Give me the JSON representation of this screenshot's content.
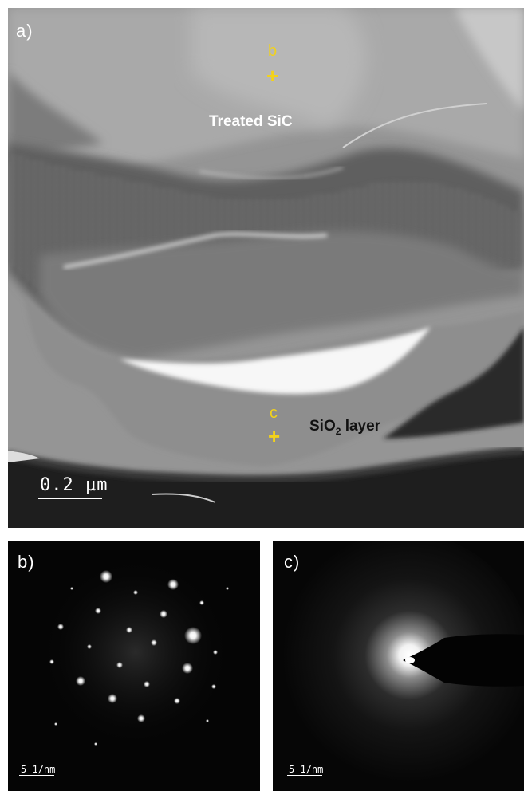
{
  "panel_a": {
    "label": "a)",
    "marker_b_letter": "b",
    "marker_c_letter": "c",
    "marker_symbol": "+",
    "treated_label": "Treated SiC",
    "sio2_prefix": "SiO",
    "sio2_sub": "2",
    "sio2_suffix": " layer",
    "scale_bar": "0.2 µm"
  },
  "panel_b": {
    "label": "b)",
    "scale_bar": "5 1/nm"
  },
  "panel_c": {
    "label": "c)",
    "scale_bar": "5 1/nm"
  },
  "colors": {
    "marker": "#f2d21b",
    "annotation_light": "#ffffff",
    "annotation_dark": "#111111"
  }
}
